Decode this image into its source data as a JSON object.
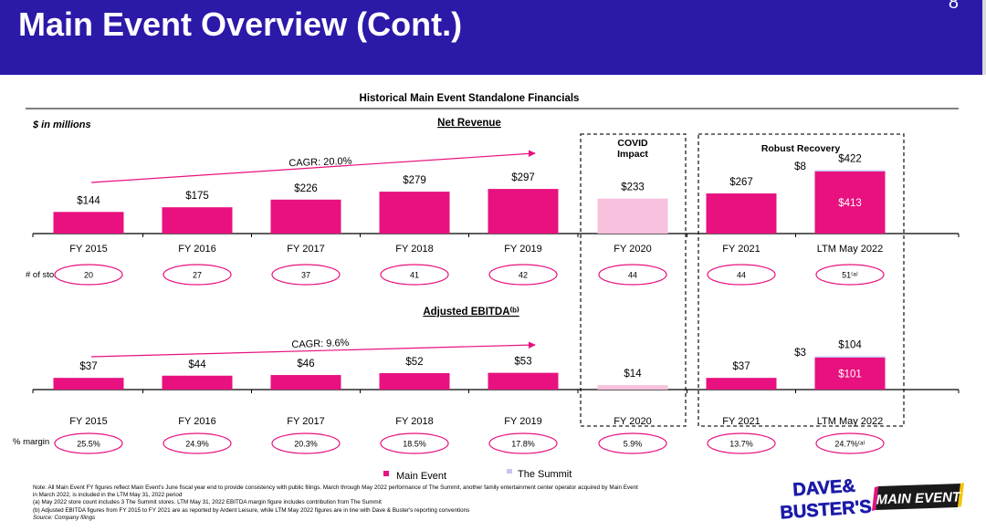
{
  "header": {
    "title": "Main Event Overview (Cont.)",
    "page_number": "8"
  },
  "chart_title": "Historical Main Event Standalone Financials",
  "units_label": "$ in millions",
  "covid_label": "COVID\nImpact",
  "recovery_label": "Robust Recovery",
  "legend": [
    {
      "label": "Main Event",
      "color": "#e8117f"
    },
    {
      "label": "The Summit",
      "color": "#c8c3f2"
    }
  ],
  "colors": {
    "main": "#e8117f",
    "covid": "#f8c1dd",
    "summit": "#c8c3f2",
    "header_bg": "#2b19a8"
  },
  "chart_data": [
    {
      "type": "bar",
      "title": "Net Revenue",
      "categories": [
        "FY 2015",
        "FY 2016",
        "FY 2017",
        "FY 2018",
        "FY 2019",
        "FY 2020",
        "FY 2021",
        "LTM May 2022"
      ],
      "series": [
        {
          "name": "Main Event",
          "values": [
            144,
            175,
            226,
            279,
            297,
            233,
            267,
            413
          ]
        },
        {
          "name": "The Summit",
          "values": [
            null,
            null,
            null,
            null,
            null,
            null,
            null,
            8
          ]
        }
      ],
      "value_labels": [
        "$144",
        "$175",
        "$226",
        "$279",
        "$297",
        "$233",
        "$267",
        "$413"
      ],
      "summit_label": "$8",
      "total_label": "$422",
      "cagr_label": "CAGR: 20.0%",
      "row_label": "# of stores",
      "row_values": [
        "20",
        "27",
        "37",
        "41",
        "42",
        "44",
        "44",
        "51⁽ᵃ⁾"
      ],
      "ylim": [
        0,
        450
      ]
    },
    {
      "type": "bar",
      "title": "Adjusted EBITDA⁽ᵇ⁾",
      "categories": [
        "FY 2015",
        "FY 2016",
        "FY 2017",
        "FY 2018",
        "FY 2019",
        "FY 2020",
        "FY 2021",
        "LTM May 2022"
      ],
      "series": [
        {
          "name": "Main Event",
          "values": [
            37,
            44,
            46,
            52,
            53,
            14,
            37,
            101
          ]
        },
        {
          "name": "The Summit",
          "values": [
            null,
            null,
            null,
            null,
            null,
            null,
            null,
            3
          ]
        }
      ],
      "value_labels": [
        "$37",
        "$44",
        "$46",
        "$52",
        "$53",
        "$14",
        "$37",
        "$101"
      ],
      "summit_label": "$3",
      "total_label": "$104",
      "cagr_label": "CAGR: 9.6%",
      "row_label": "% margin",
      "row_values": [
        "25.5%",
        "24.9%",
        "20.3%",
        "18.5%",
        "17.8%",
        "5.9%",
        "13.7%",
        "24.7%⁽ᵃ⁾"
      ],
      "ylim": [
        0,
        110
      ]
    }
  ],
  "footnotes": [
    "Note: All Main Event FY figures reflect Main Event's June fiscal year end to provide consistency with public filings. March through May 2022 performance of The Summit, another family entertainment center operator acquired by Main Event",
    "in March 2022, is included in the LTM May 31, 2022 period",
    "(a)     May 2022 store count includes 3 The Summit stores. LTM May 31, 2022 EBITDA margin figure includes contribution from The Summit",
    "(b)     Adjusted EBITDA figures from FY 2015 to FY 2021 are as reported by Ardent Leisure, while LTM May 2022 figures are in line with Dave & Buster's reporting conventions",
    "Source: Company filings"
  ],
  "logos": {
    "dave_busters": "DAVE & BUSTER'S",
    "main_event": "MAIN EVENT"
  }
}
